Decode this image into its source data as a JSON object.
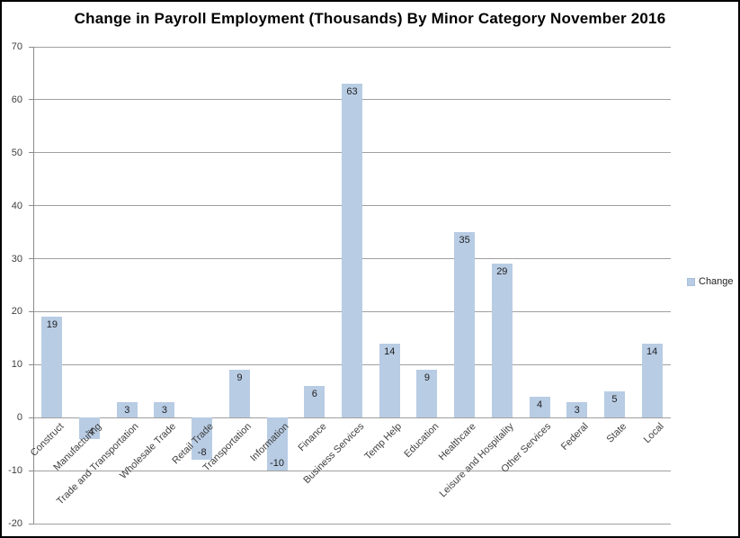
{
  "chart_data": {
    "type": "bar",
    "title": "Change in Payroll Employment (Thousands) By Minor Category November 2016",
    "categories": [
      "Construct",
      "Manufacturing",
      "Trade and Transportation",
      "Wholesale Trade",
      "Retail Trade",
      "Transportation",
      "Information",
      "Finance",
      "Business Services",
      "Temp Help",
      "Education",
      "Healthcare",
      "Leisure and Hospitality",
      "Other Services",
      "Federal",
      "State",
      "Local"
    ],
    "series": [
      {
        "name": "Change",
        "values": [
          19,
          -4,
          3,
          3,
          -8,
          9,
          -10,
          6,
          63,
          14,
          9,
          35,
          29,
          4,
          3,
          5,
          14
        ]
      }
    ],
    "xlabel": "",
    "ylabel": "",
    "ylim": [
      -20,
      70
    ],
    "yticks": [
      70,
      60,
      50,
      40,
      30,
      20,
      10,
      0,
      -10,
      -20
    ],
    "grid": true,
    "legend_position": "right",
    "data_labels": "inside-end",
    "colors": {
      "bar_fill": "#b8cce4",
      "gridline": "#a0a0a0",
      "axis_line": "#8c8c8c",
      "axis_text": "#404040",
      "value_text": "#1f1f1f",
      "title_text": "#000000"
    }
  }
}
